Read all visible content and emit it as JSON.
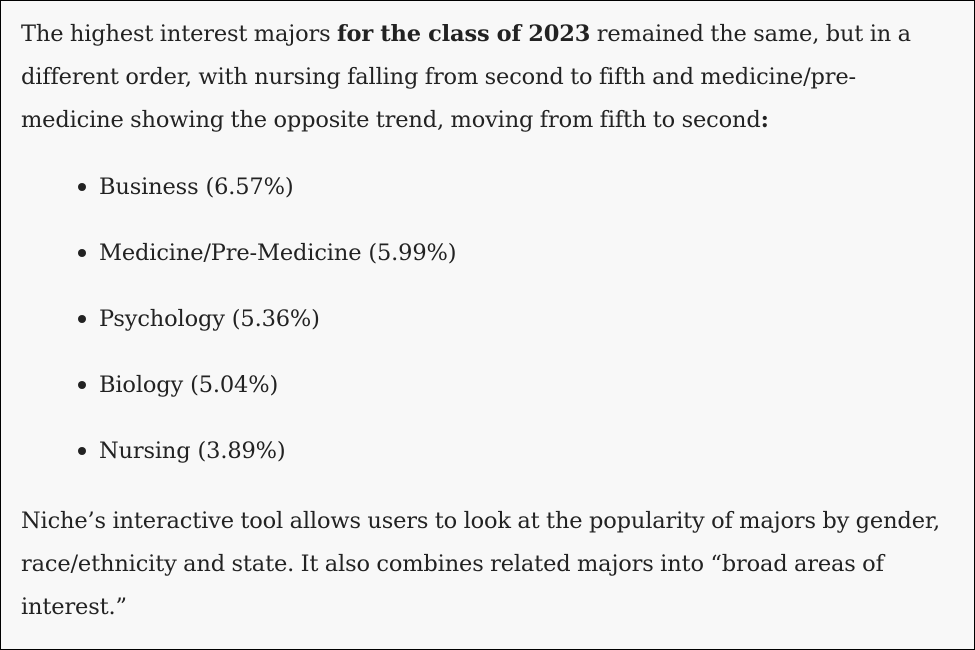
{
  "intro": {
    "text_before": "The highest interest majors ",
    "bold": "for the class of 2023",
    "text_after": " remained the same, but in a different order, with nursing falling from second to fifth and medicine/pre-medicine showing the opposite trend, moving from fifth to second",
    "colon": ":"
  },
  "majors": [
    {
      "label": "Business (6.57%)"
    },
    {
      "label": "Medicine/Pre-Medicine (5.99%)"
    },
    {
      "label": "Psychology (5.36%)"
    },
    {
      "label": "Biology (5.04%)"
    },
    {
      "label": "Nursing (3.89%)"
    }
  ],
  "closing": {
    "text": "Niche’s interactive tool allows users to look at the popularity of majors by gender, race/ethnicity and state. It also combines related majors into “broad areas of interest.”"
  }
}
